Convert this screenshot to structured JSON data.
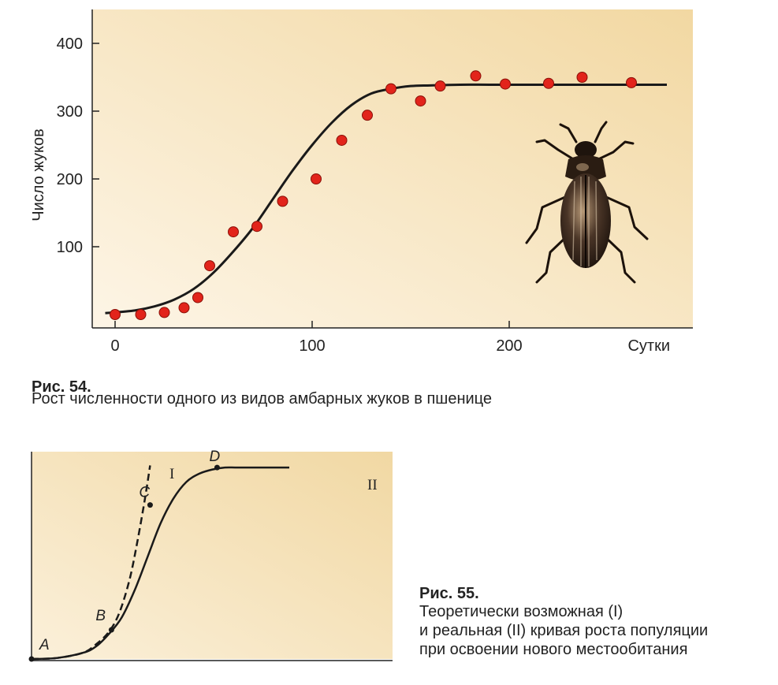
{
  "figure54": {
    "caption_title": "Рис. 54.",
    "caption_text": "Рост численности одного из видов амбарных жуков в пшенице"
  },
  "figure55": {
    "caption_title": "Рис. 55.",
    "caption_lines": [
      "Теоретически возможная (I)",
      "и реальная (II) кривая роста популяции",
      "при освоении нового местообитания"
    ]
  },
  "colors": {
    "plot_bg_light": "#fbf1dc",
    "plot_bg_dark": "#f2d9a4",
    "point_fill": "#e2241b",
    "point_stroke": "#8a1008",
    "line": "#1a1a1a"
  },
  "icons": [
    "beetle-illustration"
  ],
  "chart_data": [
    {
      "type": "scatter",
      "xlabel": "Сутки",
      "ylabel": "Число жуков",
      "x_ticks": [
        0,
        100,
        200
      ],
      "x_tick_labels": [
        "0",
        "100",
        "200"
      ],
      "y_ticks": [
        100,
        200,
        300,
        400
      ],
      "y_tick_labels": [
        "100",
        "200",
        "300",
        "400"
      ],
      "xlim": [
        -5,
        290
      ],
      "ylim": [
        -10,
        450
      ],
      "grid": false,
      "series": [
        {
          "kind": "points",
          "x": [
            0,
            13,
            25,
            35,
            42,
            48,
            60,
            72,
            85,
            102,
            115,
            128,
            140,
            155,
            165,
            183,
            198,
            220,
            237,
            262
          ],
          "y": [
            0,
            0,
            3,
            10,
            25,
            72,
            122,
            130,
            167,
            200,
            257,
            294,
            333,
            315,
            337,
            352,
            340,
            341,
            350,
            342
          ]
        },
        {
          "kind": "fitted-curve",
          "x": [
            -5,
            10,
            20,
            30,
            40,
            50,
            60,
            70,
            80,
            90,
            100,
            110,
            120,
            130,
            140,
            150,
            160,
            175,
            190,
            210,
            240,
            280
          ],
          "y": [
            2,
            6,
            12,
            22,
            38,
            62,
            93,
            128,
            170,
            212,
            250,
            283,
            309,
            326,
            333,
            337,
            338,
            339,
            339,
            339,
            339,
            339
          ]
        }
      ]
    },
    {
      "type": "line",
      "xlabel": "",
      "ylabel": "",
      "xlim": [
        0,
        10
      ],
      "ylim": [
        0,
        10
      ],
      "grid": false,
      "series": [
        {
          "name": "I",
          "style": "dashed",
          "x": [
            0,
            1,
            2,
            2.5,
            3,
            3.4,
            3.8,
            4.1,
            4.4,
            4.6
          ],
          "y": [
            0,
            0.05,
            0.3,
            0.7,
            1.3,
            2.2,
            3.8,
            5.6,
            7.7,
            9.3
          ]
        },
        {
          "name": "II",
          "style": "solid",
          "x": [
            0,
            1,
            2,
            2.5,
            3,
            3.5,
            4,
            4.5,
            5,
            5.5,
            6,
            6.5,
            7,
            7.5,
            8,
            9,
            10
          ],
          "y": [
            0,
            0.05,
            0.3,
            0.6,
            1.2,
            2.0,
            3.3,
            4.9,
            6.5,
            7.7,
            8.5,
            8.9,
            9.1,
            9.2,
            9.2,
            9.2,
            9.2
          ]
        }
      ],
      "labeled_points": [
        {
          "label": "A",
          "x": 0,
          "y": 0
        },
        {
          "label": "B",
          "x": 3.1,
          "y": 1.4
        },
        {
          "label": "C",
          "x": 4.6,
          "y": 7.4
        },
        {
          "label": "D",
          "x": 7.2,
          "y": 9.2
        }
      ],
      "curve_labels": [
        "I",
        "II"
      ]
    }
  ]
}
